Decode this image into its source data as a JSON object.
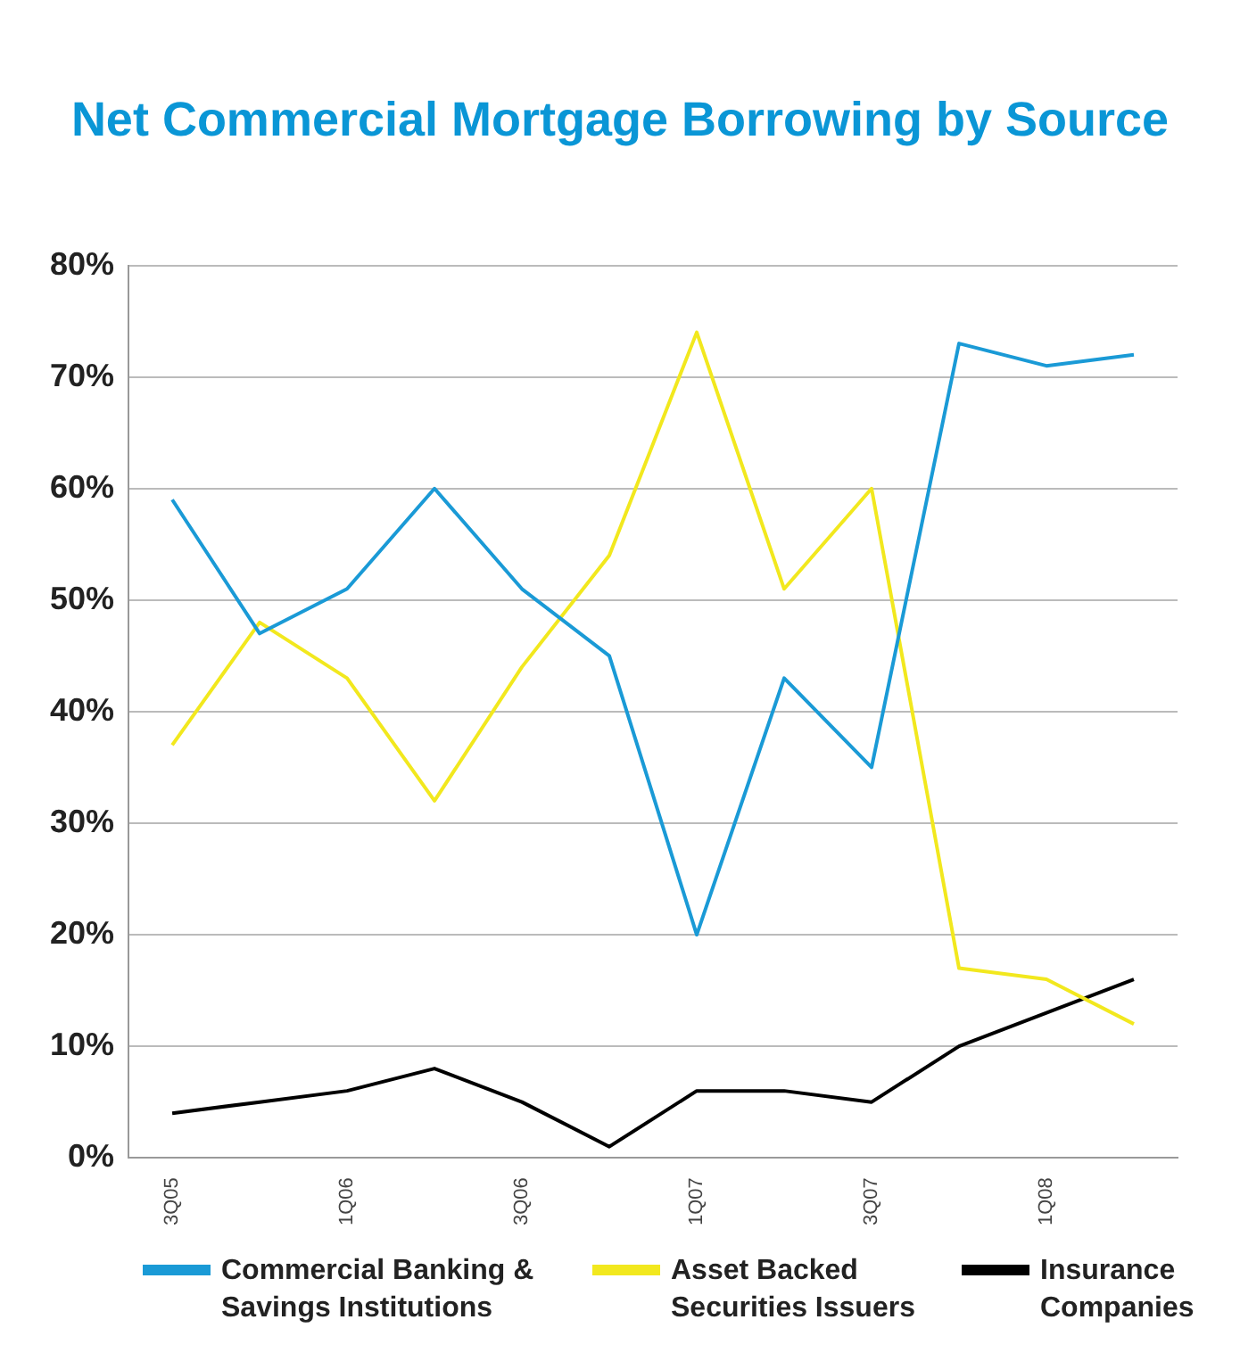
{
  "chart_data": {
    "type": "line",
    "title": "Net Commercial Mortgage Borrowing by Source",
    "categories": [
      "3Q05",
      null,
      "1Q06",
      null,
      "3Q06",
      null,
      "1Q07",
      null,
      "3Q07",
      null,
      "1Q08",
      null
    ],
    "series": [
      {
        "name": "Commercial Banking & Savings Institutions",
        "color": "#1a9ad6",
        "values": [
          59,
          47,
          51,
          60,
          51,
          45,
          20,
          43,
          35,
          73,
          71,
          72
        ]
      },
      {
        "name": "Asset Backed Securities Issuers",
        "color": "#f2e81e",
        "values": [
          37,
          48,
          43,
          32,
          44,
          54,
          74,
          51,
          60,
          17,
          16,
          12
        ]
      },
      {
        "name": "Insurance Companies",
        "color": "#000000",
        "values": [
          4,
          5,
          6,
          8,
          5,
          1,
          6,
          6,
          5,
          10,
          13,
          16
        ]
      }
    ],
    "ylim": [
      0,
      80
    ],
    "yticks": [
      {
        "value": 0,
        "label": "0%"
      },
      {
        "value": 10,
        "label": "10%"
      },
      {
        "value": 20,
        "label": "20%"
      },
      {
        "value": 30,
        "label": "30%"
      },
      {
        "value": 40,
        "label": "40%"
      },
      {
        "value": 50,
        "label": "50%"
      },
      {
        "value": 60,
        "label": "60%"
      },
      {
        "value": 70,
        "label": "70%"
      },
      {
        "value": 80,
        "label": "80%"
      }
    ],
    "grid": "y",
    "legend": "bottom",
    "marker": "none",
    "line_style": "solid"
  }
}
